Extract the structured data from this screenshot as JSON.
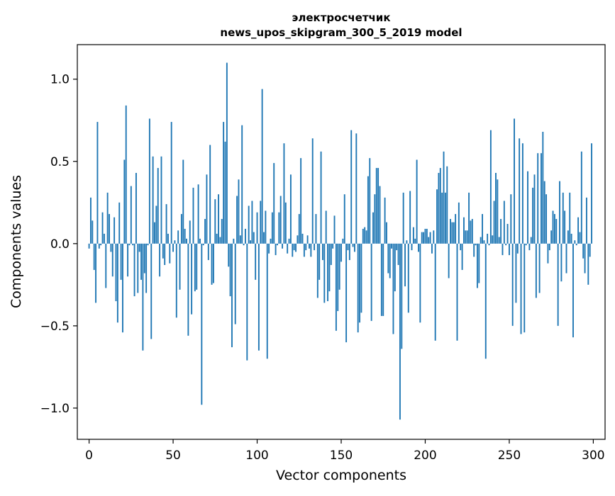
{
  "chart_data": {
    "type": "bar",
    "title": "электросчетчик",
    "subtitle": "news_upos_skipgram_300_5_2019 model",
    "xlabel": "Vector components",
    "ylabel": "Components values",
    "xlim": [
      -7,
      307
    ],
    "ylim": [
      -1.19,
      1.21
    ],
    "x_ticks": [
      0,
      50,
      100,
      150,
      200,
      250,
      300
    ],
    "x_tick_labels": [
      "0",
      "50",
      "100",
      "150",
      "200",
      "250",
      "300"
    ],
    "y_ticks": [
      -1.0,
      -0.5,
      0.0,
      0.5,
      1.0
    ],
    "y_tick_labels": [
      "−1.0",
      "−0.5",
      "0.0",
      "0.5",
      "1.0"
    ],
    "grid": false,
    "bar_color": "#1f77b4",
    "values": [
      -0.03,
      0.28,
      0.14,
      -0.16,
      -0.36,
      0.74,
      -0.03,
      -0.01,
      0.19,
      0.06,
      -0.27,
      0.31,
      0.18,
      -0.05,
      -0.2,
      0.16,
      -0.35,
      -0.48,
      0.25,
      -0.22,
      -0.54,
      0.51,
      0.84,
      -0.2,
      -0.01,
      0.35,
      -0.01,
      -0.32,
      0.43,
      -0.3,
      -0.05,
      -0.22,
      -0.65,
      -0.18,
      -0.3,
      -0.01,
      0.76,
      -0.58,
      0.53,
      0.13,
      0.23,
      0.46,
      -0.2,
      0.53,
      -0.09,
      -0.13,
      0.24,
      0.06,
      -0.12,
      0.74,
      -0.05,
      0.02,
      -0.45,
      0.08,
      -0.28,
      0.18,
      0.51,
      0.09,
      0.03,
      -0.56,
      0.14,
      -0.43,
      0.34,
      -0.29,
      -0.28,
      0.36,
      0.03,
      -0.98,
      -0.01,
      0.15,
      0.42,
      -0.1,
      0.6,
      -0.25,
      -0.24,
      0.27,
      0.06,
      0.3,
      0.04,
      0.15,
      0.74,
      0.62,
      1.1,
      -0.14,
      -0.32,
      -0.63,
      0.03,
      -0.49,
      0.29,
      0.39,
      0.05,
      0.72,
      -0.01,
      0.09,
      -0.71,
      0.23,
      0.02,
      0.26,
      0.07,
      -0.22,
      0.19,
      -0.65,
      0.26,
      0.94,
      0.07,
      0.2,
      -0.7,
      -0.06,
      0.03,
      0.19,
      0.49,
      -0.07,
      -0.01,
      0.19,
      0.29,
      -0.03,
      0.61,
      0.25,
      -0.06,
      0.03,
      0.42,
      -0.08,
      -0.04,
      -0.05,
      0.05,
      0.18,
      0.52,
      0.06,
      -0.08,
      -0.04,
      0.05,
      -0.03,
      -0.08,
      0.64,
      -0.04,
      0.18,
      -0.33,
      -0.22,
      0.56,
      -0.1,
      -0.36,
      0.2,
      -0.35,
      -0.29,
      -0.13,
      -0.03,
      0.17,
      -0.53,
      -0.41,
      -0.28,
      -0.11,
      0.03,
      0.3,
      -0.6,
      -0.04,
      -0.1,
      0.69,
      -0.02,
      -0.05,
      0.67,
      -0.54,
      -0.48,
      -0.42,
      0.09,
      0.1,
      0.08,
      0.41,
      0.52,
      -0.47,
      0.19,
      0.3,
      0.46,
      0.46,
      0.35,
      -0.44,
      -0.44,
      0.28,
      0.13,
      -0.18,
      -0.21,
      -0.03,
      -0.55,
      -0.29,
      -0.04,
      -0.13,
      -1.07,
      -0.64,
      0.31,
      -0.26,
      0.02,
      -0.42,
      0.32,
      -0.04,
      0.1,
      0.03,
      0.51,
      -0.05,
      -0.48,
      0.07,
      0.07,
      0.09,
      0.09,
      0.04,
      0.07,
      -0.06,
      0.08,
      -0.59,
      0.33,
      0.43,
      0.46,
      0.31,
      0.56,
      0.31,
      0.47,
      -0.21,
      0.15,
      0.13,
      0.13,
      0.18,
      -0.59,
      0.25,
      -0.04,
      -0.16,
      0.16,
      0.08,
      0.08,
      0.31,
      0.14,
      0.15,
      -0.08,
      -0.01,
      -0.27,
      -0.24,
      0.04,
      0.18,
      0.02,
      -0.7,
      0.06,
      -0.01,
      0.69,
      0.05,
      0.26,
      0.43,
      0.39,
      0.04,
      0.15,
      -0.07,
      0.26,
      -0.01,
      0.12,
      -0.07,
      0.3,
      -0.5,
      0.76,
      -0.36,
      -0.06,
      0.64,
      -0.55,
      0.61,
      -0.54,
      -0.01,
      0.44,
      -0.04,
      0.04,
      0.34,
      0.42,
      -0.33,
      0.55,
      -0.3,
      0.55,
      0.68,
      0.38,
      0.3,
      -0.12,
      -0.04,
      0.08,
      0.2,
      0.18,
      0.15,
      -0.5,
      0.38,
      -0.23,
      0.31,
      0.2,
      -0.18,
      0.08,
      0.31,
      0.06,
      -0.57,
      0.02,
      -0.01,
      0.16,
      0.07,
      0.56,
      -0.09,
      -0.18,
      0.28,
      -0.25,
      -0.08,
      0.61
    ]
  }
}
